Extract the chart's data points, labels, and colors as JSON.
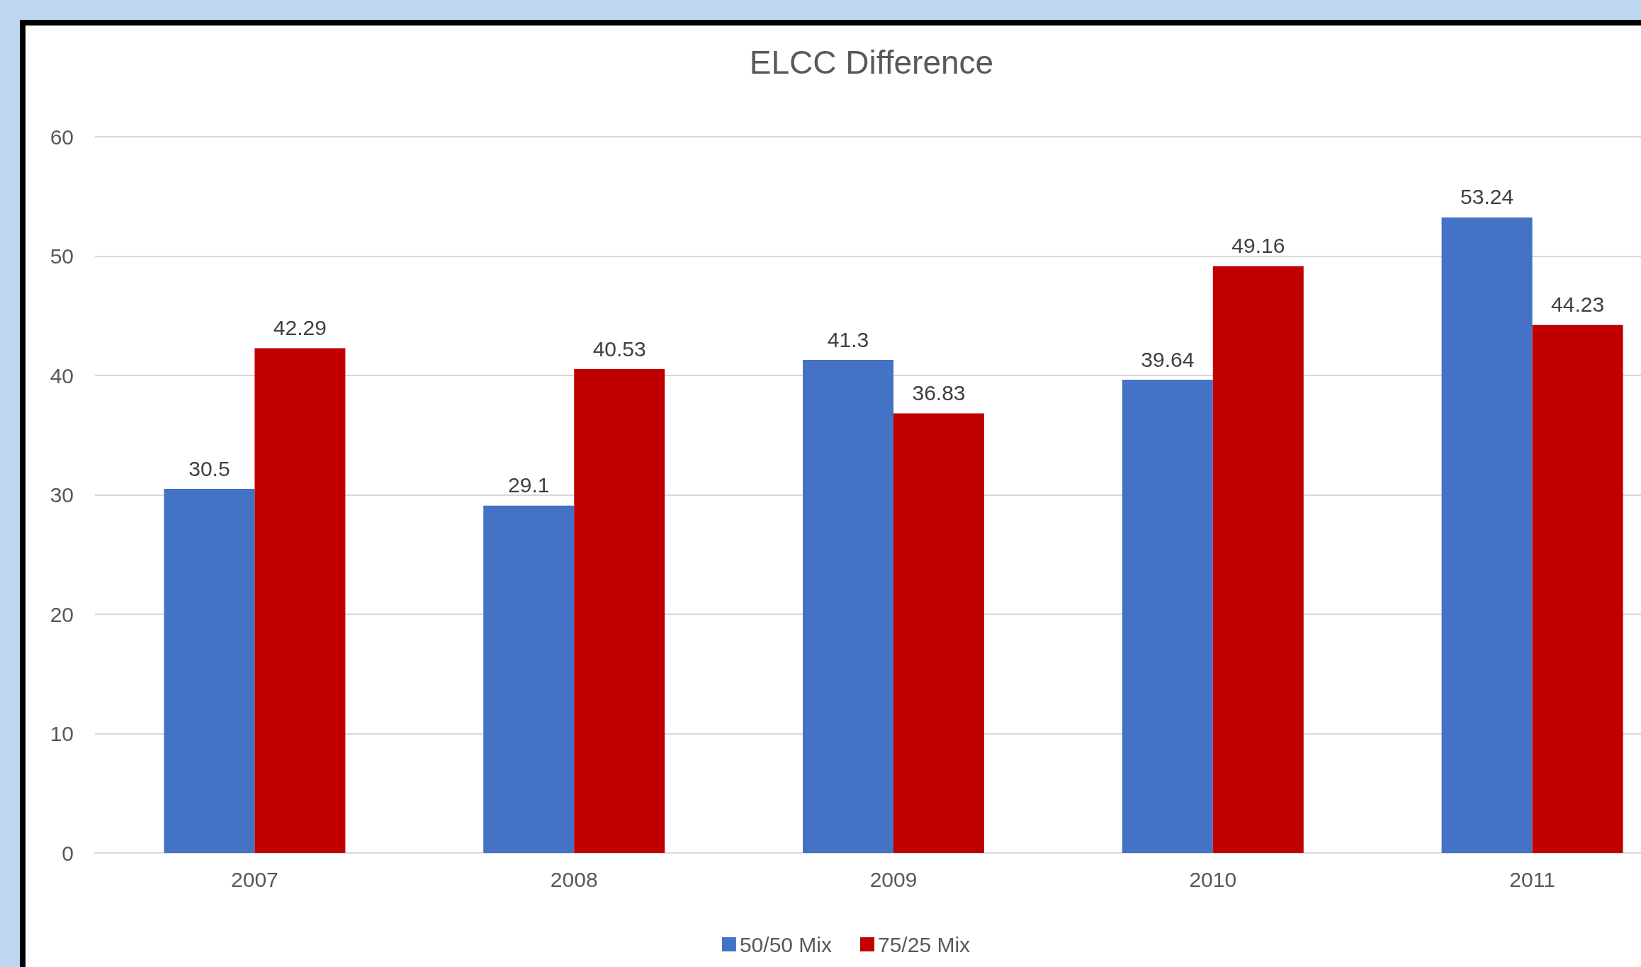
{
  "chart_data": {
    "type": "bar",
    "title": "ELCC Difference",
    "categories": [
      "2007",
      "2008",
      "2009",
      "2010",
      "2011"
    ],
    "series": [
      {
        "name": "50/50 Mix",
        "color": "#4472c4",
        "values": [
          30.5,
          29.1,
          41.3,
          39.64,
          53.24
        ]
      },
      {
        "name": "75/25 Mix",
        "color": "#c00000",
        "values": [
          42.29,
          40.53,
          36.83,
          49.16,
          44.23
        ]
      }
    ],
    "ylim": [
      0,
      60
    ],
    "yticks": [
      0,
      10,
      20,
      30,
      40,
      50,
      60
    ],
    "grid": "y",
    "legend": "bottom",
    "data_labels": true
  }
}
